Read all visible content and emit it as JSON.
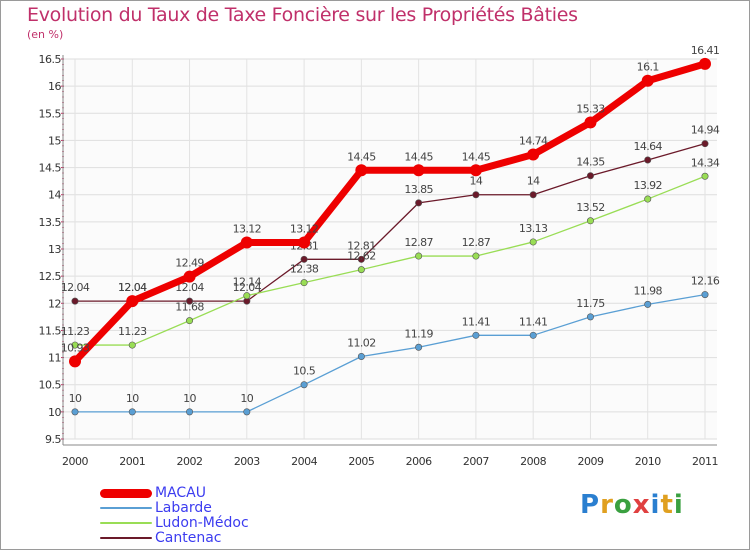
{
  "chart_data": {
    "type": "line",
    "title": "Evolution du Taux de Taxe Foncière sur les Propriétés Bâties",
    "ylabel": "(en %)",
    "categories": [
      "2000",
      "2001",
      "2002",
      "2003",
      "2004",
      "2005",
      "2006",
      "2007",
      "2008",
      "2009",
      "2010",
      "2011"
    ],
    "ylim": [
      9.5,
      16.5
    ],
    "yticks": [
      "9.5",
      "10",
      "10.5",
      "11",
      "11.5",
      "12",
      "12.5",
      "13",
      "13.5",
      "14",
      "14.5",
      "15",
      "15.5",
      "16",
      "16.5"
    ],
    "series": [
      {
        "name": "Cantenac",
        "color": "#6b1a2a",
        "width": 1.3,
        "values": [
          12.04,
          12.04,
          12.04,
          12.04,
          12.81,
          12.81,
          13.85,
          14,
          14,
          14.35,
          14.64,
          14.94
        ],
        "labels": [
          "12.04",
          "12.04",
          "12.04",
          "12.04",
          "12.81",
          "12.81",
          "13.85",
          "14",
          "14",
          "14.35",
          "14.64",
          "14.94"
        ]
      },
      {
        "name": "Ludon-Médoc",
        "color": "#99dd55",
        "width": 1.3,
        "values": [
          11.23,
          11.23,
          11.68,
          12.14,
          12.38,
          12.62,
          12.87,
          12.87,
          13.13,
          13.52,
          13.92,
          14.34
        ],
        "labels": [
          "11.23",
          "11.23",
          "11.68",
          "12.14",
          "12.38",
          "12.62",
          "12.87",
          "12.87",
          "13.13",
          "13.52",
          "13.92",
          "14.34"
        ]
      },
      {
        "name": "Labarde",
        "color": "#5a9fd4",
        "width": 1.3,
        "values": [
          10,
          10,
          10,
          10,
          10.5,
          11.02,
          11.19,
          11.41,
          11.41,
          11.75,
          11.98,
          12.16
        ],
        "labels": [
          "10",
          "10",
          "10",
          "10",
          "10.5",
          "11.02",
          "11.19",
          "11.41",
          "11.41",
          "11.75",
          "11.98",
          "12.16"
        ]
      },
      {
        "name": "MACAU",
        "color": "#ee0000",
        "width": 7,
        "values": [
          10.93,
          12.04,
          12.49,
          13.12,
          13.12,
          14.45,
          14.45,
          14.45,
          14.74,
          15.33,
          16.1,
          16.41
        ],
        "labels": [
          "10.93",
          "12.04",
          "12.49",
          "13.12",
          "13.12",
          "14.45",
          "14.45",
          "14.45",
          "14.74",
          "15.33",
          "16.1",
          "16.41"
        ]
      }
    ]
  },
  "legend": {
    "items": [
      {
        "label": "MACAU",
        "color": "#ee0000",
        "thickness": "thick"
      },
      {
        "label": "Labarde",
        "color": "#5a9fd4",
        "thickness": "thin"
      },
      {
        "label": "Ludon-Médoc",
        "color": "#99dd55",
        "thickness": "thin"
      },
      {
        "label": "Cantenac",
        "color": "#6b1a2a",
        "thickness": "thin"
      }
    ]
  },
  "logo": {
    "letters": [
      "P",
      "r",
      "o",
      "x",
      "i",
      "t",
      "i"
    ],
    "colors": [
      "#2a7fd0",
      "#e0a020",
      "#3aa040",
      "#e04040",
      "#2a7fd0",
      "#e0a020",
      "#3aa040"
    ]
  }
}
